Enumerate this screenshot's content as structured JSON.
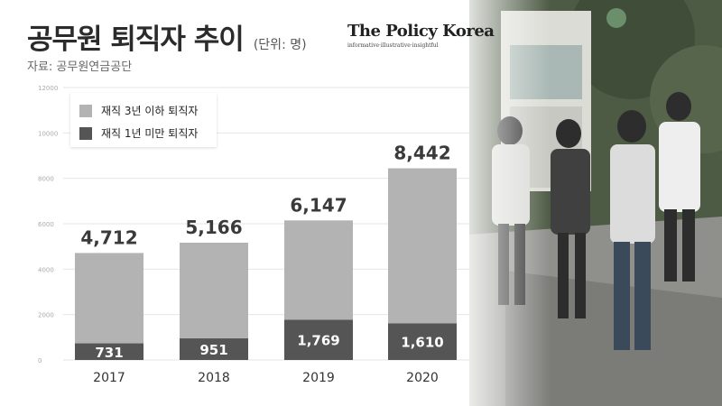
{
  "header": {
    "title": "공무원 퇴직자 추이",
    "unit": "(단위: 명)",
    "source": "자료: 공무원연금공단"
  },
  "logo": {
    "name": "The Policy Korea",
    "tagline": "informative·illustrative·insightful"
  },
  "colors": {
    "total_bar": "#b3b3b3",
    "under_1yr_bar": "#555555"
  },
  "chart_data": {
    "type": "bar",
    "categories": [
      "2017",
      "2018",
      "2019",
      "2020"
    ],
    "series": [
      {
        "name": "재직 3년 이하 퇴직자",
        "values": [
          4712,
          5166,
          6147,
          8442
        ]
      },
      {
        "name": "재직 1년 미만 퇴직자",
        "values": [
          731,
          951,
          1769,
          1610
        ]
      }
    ],
    "y_ticks": [
      "0",
      "2000",
      "4000",
      "6000",
      "8000",
      "10000",
      "12000"
    ],
    "ylim": [
      0,
      12000
    ],
    "legend_position": "top-left",
    "grid": true
  }
}
